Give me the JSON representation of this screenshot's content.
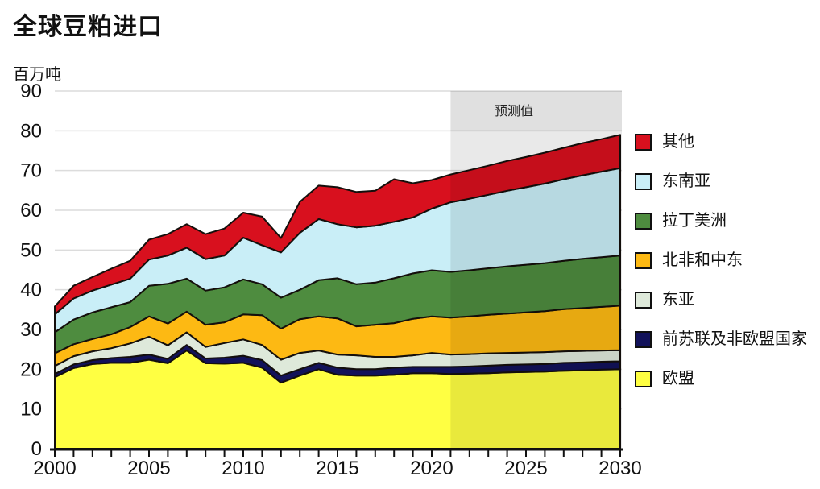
{
  "chart_data": {
    "type": "area",
    "stacked": true,
    "title": "全球豆粕进口",
    "ylabel": "百万吨",
    "forecast_label": "预测值",
    "forecast_start_x": 2021,
    "legend_position": "right",
    "grid": "horizontal",
    "ylim": [
      0,
      90
    ],
    "y_ticks": [
      0,
      10,
      20,
      30,
      40,
      50,
      60,
      70,
      80,
      90
    ],
    "x_tick_labels": [
      2000,
      2005,
      2010,
      2015,
      2020,
      2025,
      2030
    ],
    "x": [
      2000,
      2001,
      2002,
      2003,
      2004,
      2005,
      2006,
      2007,
      2008,
      2009,
      2010,
      2011,
      2012,
      2013,
      2014,
      2015,
      2016,
      2017,
      2018,
      2019,
      2020,
      2021,
      2022,
      2023,
      2024,
      2025,
      2026,
      2027,
      2028,
      2029,
      2030
    ],
    "series": [
      {
        "name": "欧盟",
        "color": "#FFFF42",
        "values": [
          18.0,
          20.3,
          21.3,
          21.6,
          21.6,
          22.4,
          21.5,
          24.7,
          21.5,
          21.4,
          21.6,
          20.4,
          16.6,
          18.4,
          20.0,
          18.6,
          18.4,
          18.4,
          18.6,
          19.0,
          19.0,
          18.8,
          18.9,
          19.0,
          19.2,
          19.3,
          19.4,
          19.6,
          19.7,
          19.9,
          20.0
        ]
      },
      {
        "name": "前苏联及非欧盟国家",
        "color": "#12125A",
        "values": [
          0.8,
          0.9,
          1.0,
          1.2,
          1.5,
          1.3,
          1.1,
          1.4,
          1.2,
          1.5,
          1.8,
          1.9,
          1.8,
          1.6,
          1.6,
          1.8,
          1.6,
          1.6,
          1.8,
          1.6,
          1.6,
          1.8,
          1.8,
          1.9,
          1.9,
          1.9,
          1.9,
          2.0,
          2.0,
          2.0,
          2.0
        ]
      },
      {
        "name": "东亚",
        "color": "#DEE9DA",
        "values": [
          2.0,
          2.1,
          2.2,
          2.5,
          3.4,
          4.5,
          3.4,
          3.2,
          2.9,
          3.7,
          4.1,
          3.8,
          4.0,
          4.1,
          3.1,
          3.3,
          3.5,
          3.1,
          2.7,
          2.9,
          3.5,
          3.1,
          3.1,
          3.1,
          3.0,
          3.0,
          3.0,
          2.9,
          2.9,
          2.8,
          2.8
        ]
      },
      {
        "name": "北非和中东",
        "color": "#FDB913",
        "values": [
          3.2,
          3.0,
          3.1,
          3.5,
          4.1,
          5.1,
          5.5,
          5.2,
          5.6,
          5.2,
          6.3,
          7.5,
          7.8,
          8.5,
          8.6,
          9.1,
          7.3,
          8.1,
          8.5,
          9.2,
          9.2,
          9.3,
          9.5,
          9.7,
          9.9,
          10.1,
          10.3,
          10.6,
          10.8,
          11.0,
          11.2
        ]
      },
      {
        "name": "拉丁美洲",
        "color": "#4E8C3F",
        "values": [
          5.3,
          6.2,
          6.7,
          6.8,
          6.3,
          7.7,
          10.0,
          8.3,
          8.6,
          8.8,
          8.8,
          7.8,
          7.8,
          7.4,
          9.1,
          10.1,
          10.6,
          10.6,
          11.3,
          11.4,
          11.6,
          11.5,
          11.6,
          11.7,
          11.9,
          12.0,
          12.1,
          12.2,
          12.4,
          12.5,
          12.6
        ]
      },
      {
        "name": "东南亚",
        "color": "#C9EEF7",
        "values": [
          4.5,
          5.3,
          5.5,
          5.7,
          5.9,
          6.6,
          7.1,
          7.8,
          7.9,
          8.0,
          10.5,
          9.8,
          11.4,
          14.3,
          15.4,
          13.6,
          14.3,
          14.3,
          14.2,
          14.1,
          15.5,
          17.5,
          18.0,
          18.5,
          19.0,
          19.5,
          20.0,
          20.5,
          21.0,
          21.5,
          22.0
        ]
      },
      {
        "name": "其他",
        "color": "#D8101E",
        "values": [
          2.0,
          3.2,
          3.4,
          4.0,
          4.5,
          5.0,
          5.4,
          5.9,
          6.3,
          6.8,
          6.3,
          7.2,
          3.6,
          7.8,
          8.4,
          9.3,
          8.9,
          8.8,
          10.7,
          8.6,
          7.2,
          7.0,
          7.2,
          7.3,
          7.5,
          7.6,
          7.8,
          7.9,
          8.1,
          8.2,
          8.4
        ]
      }
    ]
  }
}
